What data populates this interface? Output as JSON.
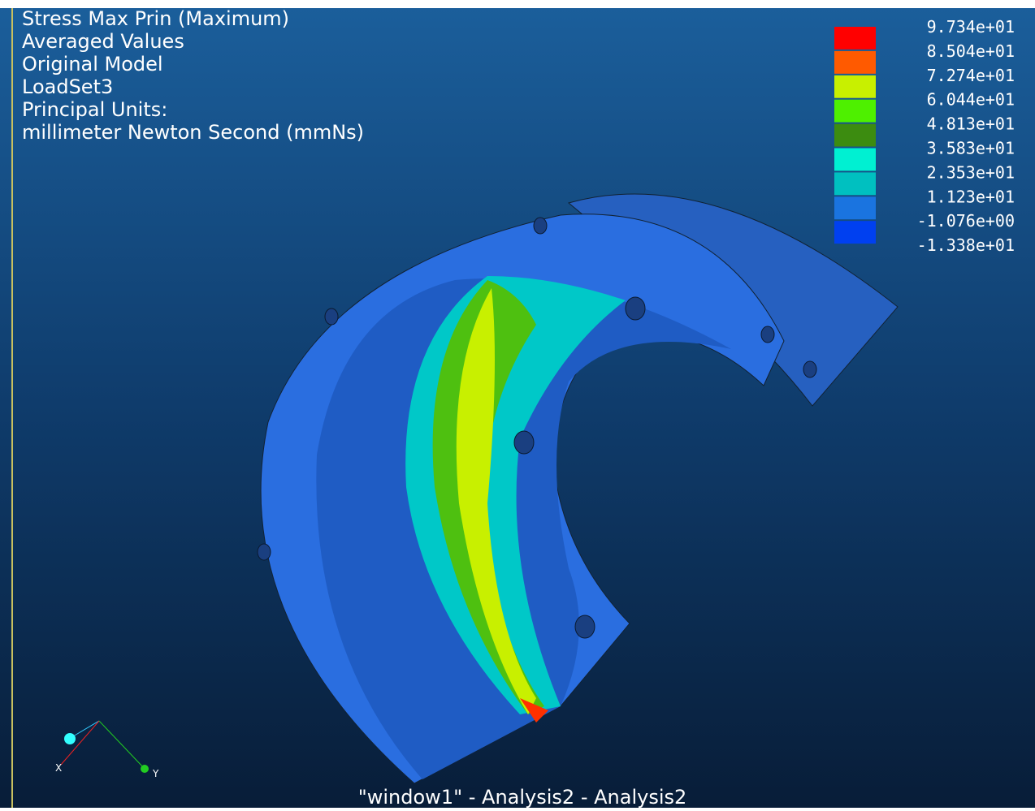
{
  "info": {
    "lines": [
      "Stress Max Prin (Maximum)",
      "Averaged Values",
      "Original Model",
      "LoadSet3",
      "Principal Units:",
      "millimeter Newton Second (mmNs)"
    ]
  },
  "legend": {
    "labels": [
      "9.734e+01",
      "8.504e+01",
      "7.274e+01",
      "6.044e+01",
      "4.813e+01",
      "3.583e+01",
      "2.353e+01",
      "1.123e+01",
      "-1.076e+00",
      "-1.338e+01"
    ],
    "colors": [
      "#ff0000",
      "#ff5a00",
      "#c8f000",
      "#4ef000",
      "#3c8c10",
      "#00f0d2",
      "#00c0c0",
      "#1a74e0",
      "#0040f0"
    ]
  },
  "axes": {
    "x": "X",
    "y": "Y"
  },
  "window_title": "\"window1\" - Analysis2 - Analysis2"
}
